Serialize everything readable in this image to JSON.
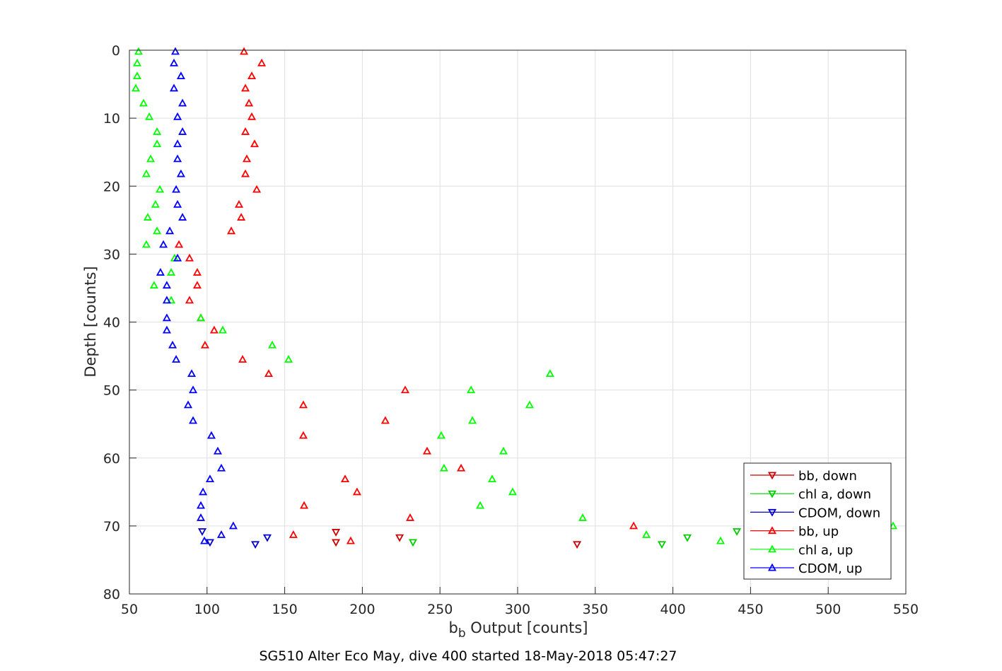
{
  "chart_data": {
    "type": "scatter",
    "title": "SG510 Alter Eco May, dive 400 started 18-May-2018 05:47:27",
    "xlabel": {
      "main": "b",
      "sub": "b",
      "rest": " Output [counts]"
    },
    "ylabel": "Depth [counts]",
    "xlim": [
      50,
      550
    ],
    "ylim": [
      0,
      80
    ],
    "y_reversed": true,
    "xticks": [
      50,
      100,
      150,
      200,
      250,
      300,
      350,
      400,
      450,
      500,
      550
    ],
    "yticks": [
      0,
      10,
      20,
      30,
      40,
      50,
      60,
      70,
      80
    ],
    "grid": true,
    "legend_position": "bottom-right",
    "series": [
      {
        "name": "bb, down",
        "color": "#cc0000",
        "marker": "triangle-down",
        "x": [
          183.0,
          183.0,
          224.0,
          338.3
        ],
        "y": [
          70.9,
          72.4,
          71.7,
          72.7
        ]
      },
      {
        "name": "chl a, down",
        "color": "#00cc00",
        "marker": "triangle-down",
        "x": [
          232.6,
          392.9,
          409.3,
          441.2
        ],
        "y": [
          72.4,
          72.7,
          71.7,
          70.8
        ]
      },
      {
        "name": "CDOM, down",
        "color": "#0000cc",
        "marker": "triangle-down",
        "x": [
          96.9,
          101.9,
          131.1,
          138.8
        ],
        "y": [
          70.8,
          72.4,
          72.7,
          71.7
        ]
      },
      {
        "name": "bb, up",
        "color": "#ff0000",
        "marker": "triangle-up",
        "x": [
          123.8,
          135.2,
          128.8,
          124.7,
          127.0,
          128.8,
          124.7,
          130.6,
          125.6,
          124.7,
          132.0,
          120.6,
          122.0,
          115.6,
          81.9,
          88.7,
          93.7,
          93.7,
          88.7,
          96.0,
          104.6,
          98.7,
          122.9,
          139.7,
          227.6,
          162.0,
          214.8,
          162.0,
          241.7,
          263.6,
          188.9,
          196.6,
          162.5,
          230.8,
          374.7,
          155.6,
          192.5
        ],
        "y": [
          0.2,
          1.9,
          3.8,
          5.6,
          7.8,
          9.8,
          12.0,
          13.8,
          16.0,
          18.2,
          20.5,
          22.7,
          24.6,
          26.6,
          28.6,
          30.6,
          32.7,
          34.6,
          36.8,
          39.4,
          41.2,
          43.4,
          45.5,
          47.6,
          50.0,
          52.2,
          54.5,
          56.7,
          59.0,
          61.5,
          63.1,
          65.0,
          67.0,
          68.8,
          70.0,
          71.3,
          72.2
        ]
      },
      {
        "name": "chl a, up",
        "color": "#00ff00",
        "marker": "triangle-up",
        "x": [
          55.9,
          55.0,
          55.0,
          54.1,
          59.1,
          62.8,
          67.8,
          67.8,
          63.7,
          60.9,
          69.6,
          66.8,
          61.8,
          67.8,
          60.9,
          79.1,
          76.9,
          65.9,
          76.9,
          96.0,
          110.1,
          142.0,
          152.5,
          320.9,
          270.0,
          307.7,
          270.9,
          250.8,
          290.9,
          252.6,
          283.6,
          296.8,
          275.9,
          341.9,
          541.8,
          382.9,
          430.7
        ],
        "y": [
          0.2,
          1.9,
          3.8,
          5.6,
          7.8,
          9.8,
          12.0,
          13.8,
          16.0,
          18.2,
          20.5,
          22.7,
          24.6,
          26.6,
          28.6,
          30.6,
          32.7,
          34.6,
          36.8,
          39.4,
          41.2,
          43.4,
          45.5,
          47.6,
          50.0,
          52.2,
          54.5,
          56.7,
          59.0,
          61.5,
          63.1,
          65.0,
          67.0,
          68.8,
          70.0,
          71.3,
          72.2
        ]
      },
      {
        "name": "CDOM, up",
        "color": "#0000ff",
        "marker": "triangle-up",
        "x": [
          79.6,
          78.7,
          83.2,
          78.7,
          84.2,
          81.0,
          84.2,
          81.0,
          81.0,
          83.2,
          80.1,
          81.0,
          84.2,
          76.0,
          71.9,
          81.0,
          70.0,
          74.1,
          74.1,
          74.1,
          74.1,
          77.8,
          80.1,
          90.1,
          91.0,
          87.8,
          91.0,
          102.8,
          106.9,
          109.2,
          101.9,
          97.4,
          96.0,
          96.0,
          116.9,
          109.2,
          98.3
        ],
        "y": [
          0.2,
          1.9,
          3.8,
          5.6,
          7.8,
          9.8,
          12.0,
          13.8,
          16.0,
          18.2,
          20.5,
          22.7,
          24.6,
          26.6,
          28.6,
          30.6,
          32.7,
          34.6,
          36.8,
          39.4,
          41.2,
          43.4,
          45.5,
          47.6,
          50.0,
          52.2,
          54.5,
          56.7,
          59.0,
          61.5,
          63.1,
          65.0,
          67.0,
          68.8,
          70.0,
          71.3,
          72.2
        ]
      }
    ]
  }
}
